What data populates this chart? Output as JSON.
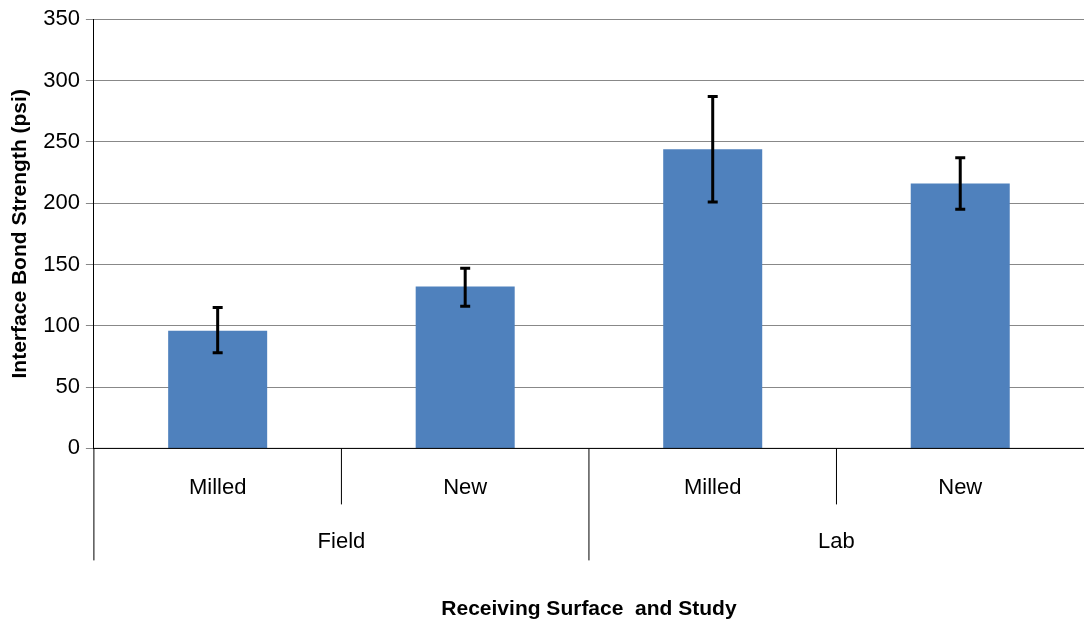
{
  "chart_data": {
    "type": "bar",
    "xlabel": "Receiving Surface  and Study",
    "ylabel": "Interface Bond Strength (psi)",
    "categories": [
      "Milled",
      "New",
      "Milled",
      "New"
    ],
    "values": [
      96,
      132,
      244,
      216
    ],
    "errors": [
      [
        78,
        115
      ],
      [
        116,
        147
      ],
      [
        201,
        287
      ],
      [
        195,
        237
      ]
    ],
    "color": "#4f81bd",
    "annotations": [
      "Field",
      "Lab"
    ],
    "ylim": [
      0,
      350
    ],
    "yticks": [
      0,
      50,
      100,
      150,
      200,
      250,
      300,
      350
    ],
    "grid": "y",
    "legend": false
  }
}
